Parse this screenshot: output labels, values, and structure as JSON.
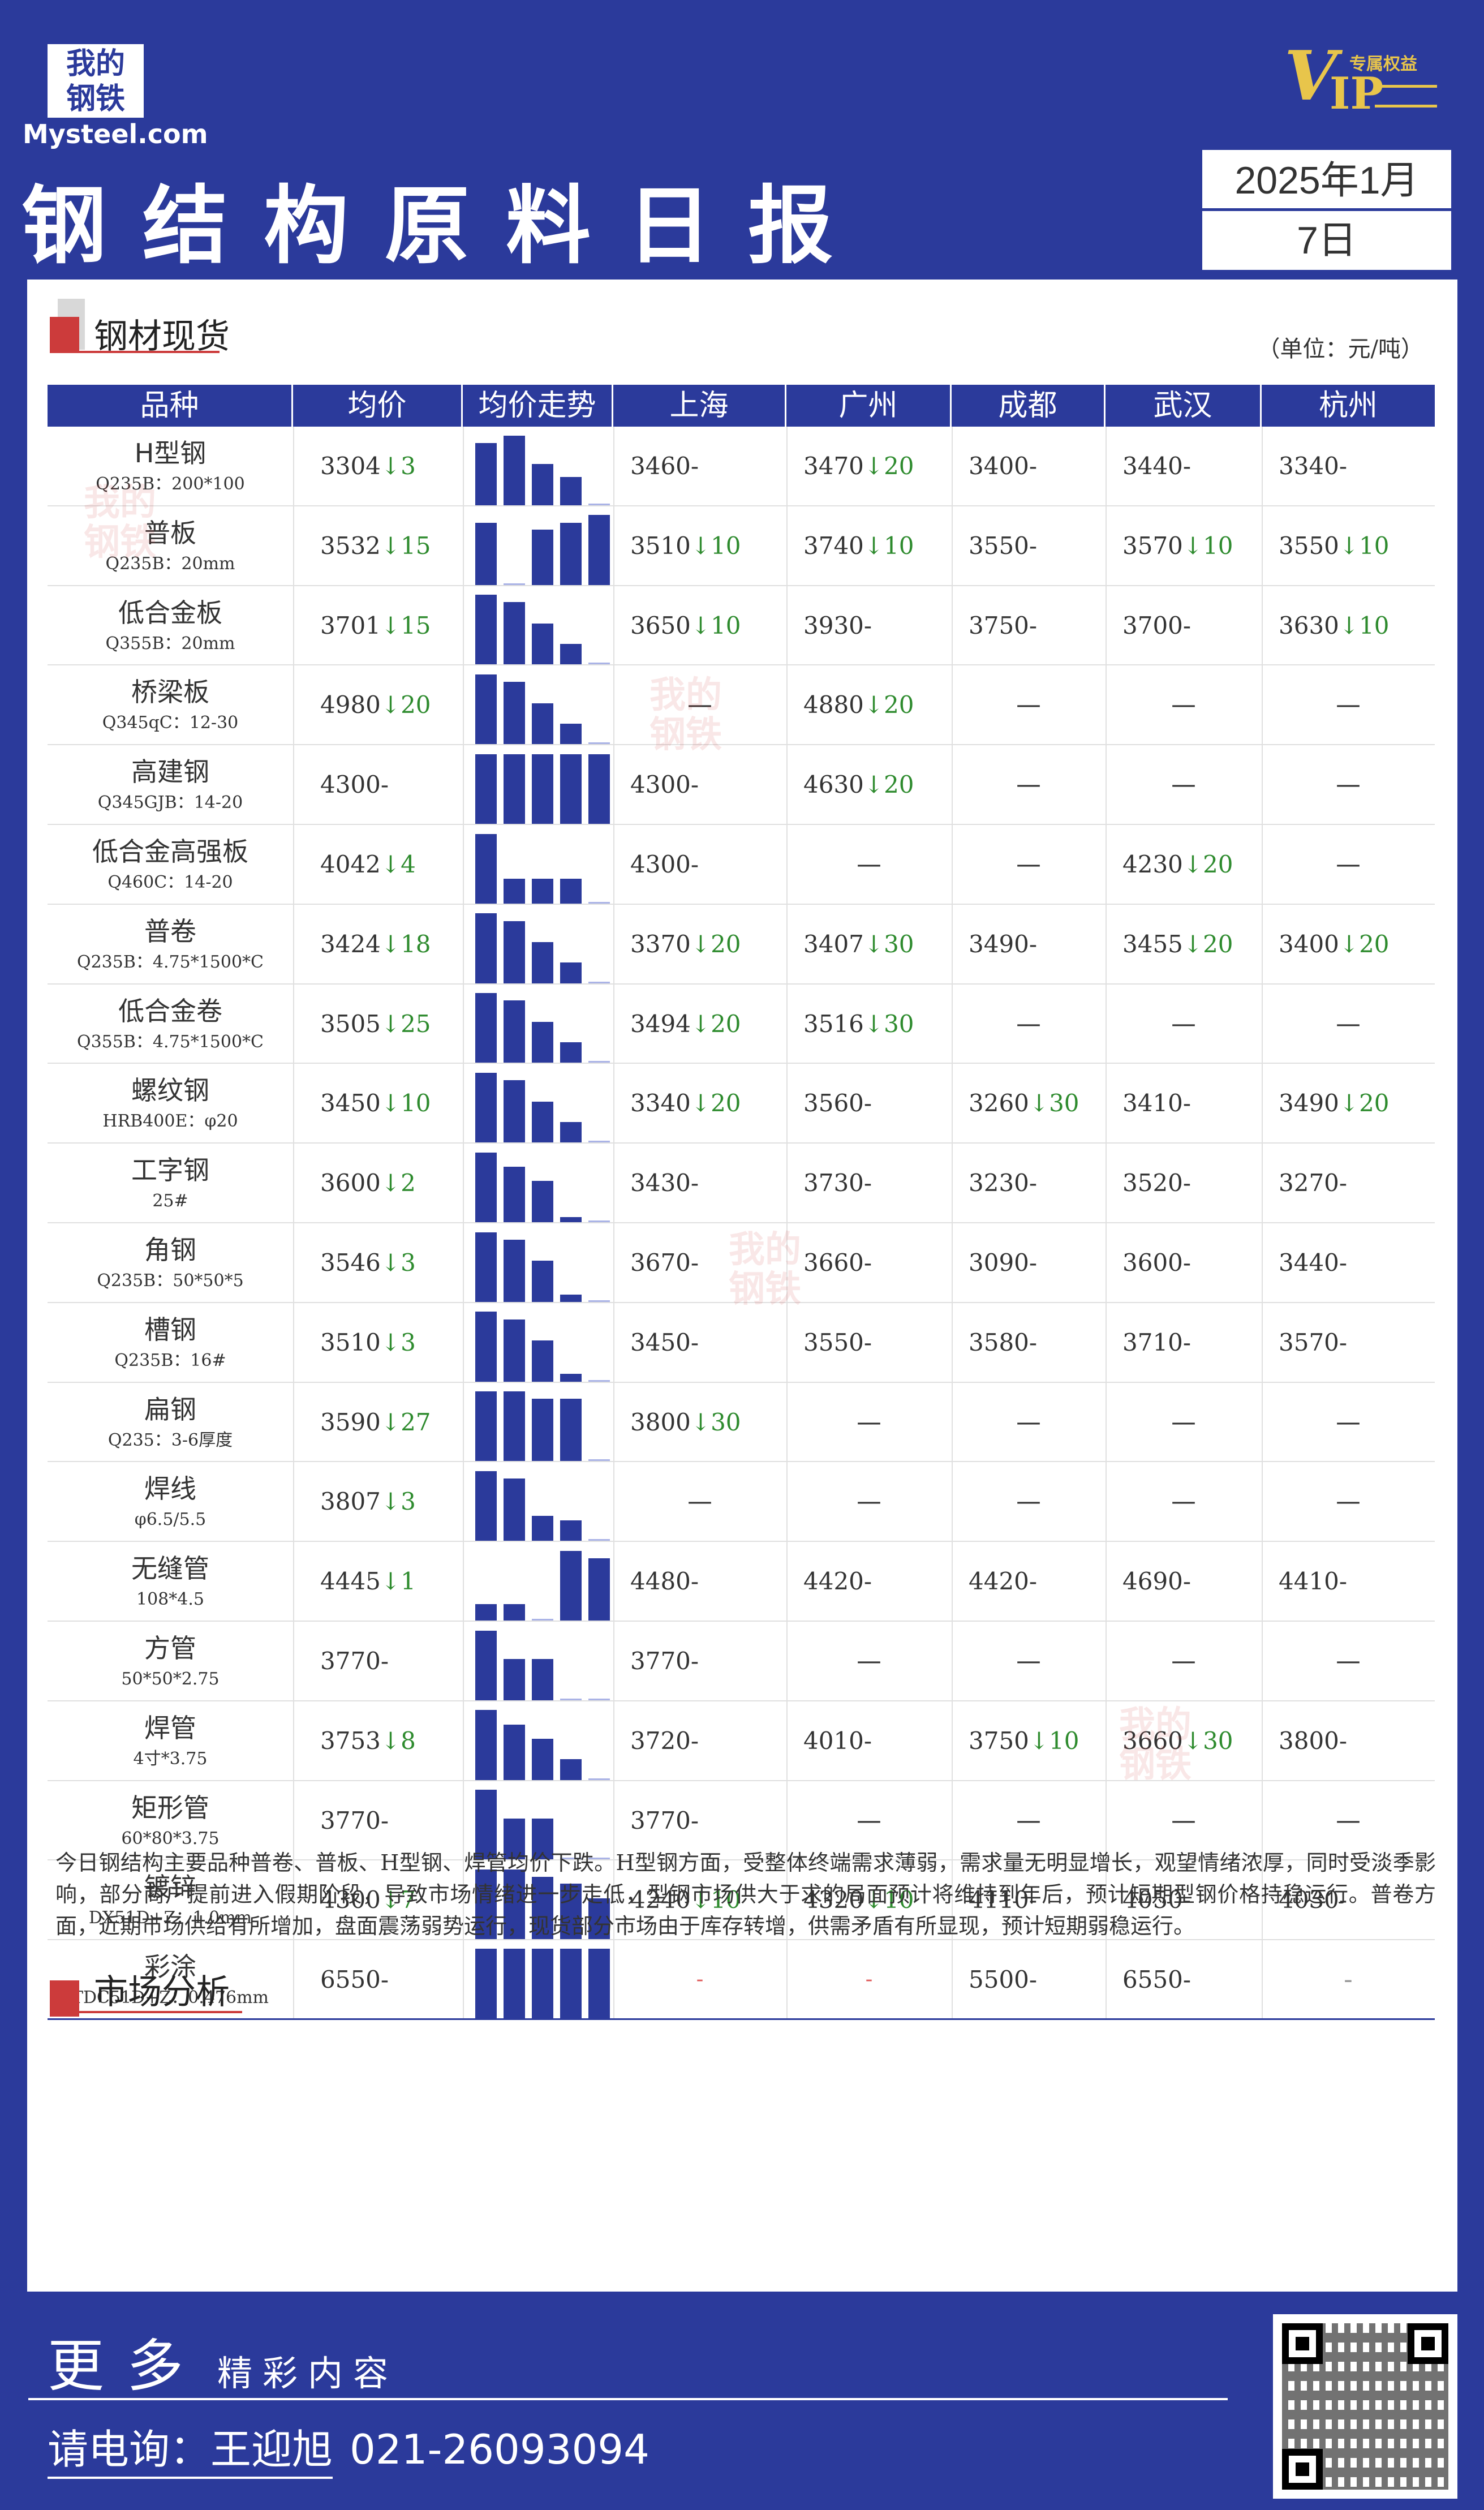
{
  "brand": {
    "logo_cn": "我的\n钢铁",
    "logo_en": "Mysteel.com",
    "vip_text": "VIP",
    "vip_tag": "专属权益"
  },
  "title": "钢结构原料日报",
  "date": {
    "line1": "2025年1月",
    "line2": "7日"
  },
  "section_spot": {
    "title": "钢材现货",
    "unit": "（单位：元/吨）"
  },
  "table": {
    "headers": [
      "品种",
      "均价",
      "均价走势",
      "上海",
      "广州",
      "成都",
      "武汉",
      "杭州"
    ],
    "rows": [
      {
        "name": "H型钢",
        "spec": "Q235B：200*100",
        "avg": "3304",
        "avg_chg": "↓3",
        "trend": [
          1.0,
          1.12,
          0.66,
          0.45,
          0.03
        ],
        "cities": [
          [
            "3460",
            "-"
          ],
          [
            "3470",
            "↓20"
          ],
          [
            "3400",
            "-"
          ],
          [
            "3440",
            "-"
          ],
          [
            "3340",
            "-"
          ]
        ]
      },
      {
        "name": "普板",
        "spec": "Q235B：20mm",
        "avg": "3532",
        "avg_chg": "↓15",
        "trend": [
          1.0,
          0.0,
          0.89,
          1.0,
          1.12
        ],
        "cities": [
          [
            "3510",
            "↓10"
          ],
          [
            "3740",
            "↓10"
          ],
          [
            "3550",
            "-"
          ],
          [
            "3570",
            "↓10"
          ],
          [
            "3550",
            "↓10"
          ]
        ]
      },
      {
        "name": "低合金板",
        "spec": "Q355B：20mm",
        "avg": "3701",
        "avg_chg": "↓15",
        "trend": [
          1.12,
          1.0,
          0.66,
          0.33,
          0.03
        ],
        "cities": [
          [
            "3650",
            "↓10"
          ],
          [
            "3930",
            "-"
          ],
          [
            "3750",
            "-"
          ],
          [
            "3700",
            "-"
          ],
          [
            "3630",
            "↓10"
          ]
        ]
      },
      {
        "name": "桥梁板",
        "spec": "Q345qC：12-30",
        "avg": "4980",
        "avg_chg": "↓20",
        "trend": [
          1.12,
          1.0,
          0.66,
          0.33,
          0.03
        ],
        "cities": [
          [
            "—",
            ""
          ],
          [
            "4880",
            "↓20"
          ],
          [
            "—",
            ""
          ],
          [
            "—",
            ""
          ],
          [
            "—",
            ""
          ]
        ]
      },
      {
        "name": "高建钢",
        "spec": "Q345GJB：14-20",
        "avg": "4300",
        "avg_chg": "-",
        "trend": [
          1.12,
          1.12,
          1.12,
          1.12,
          1.12
        ],
        "cities": [
          [
            "4300",
            "-"
          ],
          [
            "4630",
            "↓20"
          ],
          [
            "—",
            ""
          ],
          [
            "—",
            ""
          ],
          [
            "—",
            ""
          ]
        ]
      },
      {
        "name": "低合金高强板",
        "spec": "Q460C：14-20",
        "avg": "4042",
        "avg_chg": "↓4",
        "trend": [
          1.12,
          0.4,
          0.4,
          0.4,
          0.03
        ],
        "cities": [
          [
            "4300",
            "-"
          ],
          [
            "—",
            ""
          ],
          [
            "—",
            ""
          ],
          [
            "4230",
            "↓20"
          ],
          [
            "—",
            ""
          ]
        ]
      },
      {
        "name": "普卷",
        "spec": "Q235B：4.75*1500*C",
        "avg": "3424",
        "avg_chg": "↓18",
        "trend": [
          1.12,
          1.0,
          0.66,
          0.33,
          0.03
        ],
        "cities": [
          [
            "3370",
            "↓20"
          ],
          [
            "3407",
            "↓30"
          ],
          [
            "3490",
            "-"
          ],
          [
            "3455",
            "↓20"
          ],
          [
            "3400",
            "↓20"
          ]
        ]
      },
      {
        "name": "低合金卷",
        "spec": "Q355B：4.75*1500*C",
        "avg": "3505",
        "avg_chg": "↓25",
        "trend": [
          1.12,
          1.0,
          0.66,
          0.33,
          0.03
        ],
        "cities": [
          [
            "3494",
            "↓20"
          ],
          [
            "3516",
            "↓30"
          ],
          [
            "—",
            ""
          ],
          [
            "—",
            ""
          ],
          [
            "—",
            ""
          ]
        ]
      },
      {
        "name": "螺纹钢",
        "spec": "HRB400E：φ20",
        "avg": "3450",
        "avg_chg": "↓10",
        "trend": [
          1.12,
          1.0,
          0.66,
          0.33,
          0.03
        ],
        "cities": [
          [
            "3340",
            "↓20"
          ],
          [
            "3560",
            "-"
          ],
          [
            "3260",
            "↓30"
          ],
          [
            "3410",
            "-"
          ],
          [
            "3490",
            "↓20"
          ]
        ]
      },
      {
        "name": "工字钢",
        "spec": "25#",
        "avg": "3600",
        "avg_chg": "↓2",
        "trend": [
          1.12,
          0.89,
          0.66,
          0.08,
          0.03
        ],
        "cities": [
          [
            "3430",
            "-"
          ],
          [
            "3730",
            "-"
          ],
          [
            "3230",
            "-"
          ],
          [
            "3520",
            "-"
          ],
          [
            "3270",
            "-"
          ]
        ]
      },
      {
        "name": "角钢",
        "spec": "Q235B：50*50*5",
        "avg": "3546",
        "avg_chg": "↓3",
        "trend": [
          1.12,
          1.0,
          0.66,
          0.12,
          0.03
        ],
        "cities": [
          [
            "3670",
            "-"
          ],
          [
            "3660",
            "-"
          ],
          [
            "3090",
            "-"
          ],
          [
            "3600",
            "-"
          ],
          [
            "3440",
            "-"
          ]
        ]
      },
      {
        "name": "槽钢",
        "spec": "Q235B：16#",
        "avg": "3510",
        "avg_chg": "↓3",
        "trend": [
          1.12,
          1.0,
          0.66,
          0.12,
          0.03
        ],
        "cities": [
          [
            "3450",
            "-"
          ],
          [
            "3550",
            "-"
          ],
          [
            "3580",
            "-"
          ],
          [
            "3710",
            "-"
          ],
          [
            "3570",
            "-"
          ]
        ]
      },
      {
        "name": "扁钢",
        "spec": "Q235：3-6厚度",
        "avg": "3590",
        "avg_chg": "↓27",
        "trend": [
          1.12,
          1.12,
          1.0,
          1.0,
          0.03
        ],
        "cities": [
          [
            "3800",
            "↓30"
          ],
          [
            "—",
            ""
          ],
          [
            "—",
            ""
          ],
          [
            "—",
            ""
          ],
          [
            "—",
            ""
          ]
        ]
      },
      {
        "name": "焊线",
        "spec": "φ6.5/5.5",
        "avg": "3807",
        "avg_chg": "↓3",
        "trend": [
          1.12,
          1.0,
          0.4,
          0.33,
          0.03
        ],
        "cities": [
          [
            "—",
            ""
          ],
          [
            "—",
            ""
          ],
          [
            "—",
            ""
          ],
          [
            "—",
            ""
          ],
          [
            "—",
            ""
          ]
        ]
      },
      {
        "name": "无缝管",
        "spec": "108*4.5",
        "avg": "4445",
        "avg_chg": "↓1",
        "trend": [
          0.26,
          0.26,
          0.03,
          1.12,
          1.0
        ],
        "cities": [
          [
            "4480",
            "-"
          ],
          [
            "4420",
            "-"
          ],
          [
            "4420",
            "-"
          ],
          [
            "4690",
            "-"
          ],
          [
            "4410",
            "-"
          ]
        ]
      },
      {
        "name": "方管",
        "spec": "50*50*2.75",
        "avg": "3770",
        "avg_chg": "-",
        "trend": [
          1.12,
          0.66,
          0.66,
          0.03,
          0.03
        ],
        "cities": [
          [
            "3770",
            "-"
          ],
          [
            "—",
            ""
          ],
          [
            "—",
            ""
          ],
          [
            "—",
            ""
          ],
          [
            "—",
            ""
          ]
        ]
      },
      {
        "name": "焊管",
        "spec": "4寸*3.75",
        "avg": "3753",
        "avg_chg": "↓8",
        "trend": [
          1.12,
          0.89,
          0.66,
          0.33,
          0.03
        ],
        "cities": [
          [
            "3720",
            "-"
          ],
          [
            "4010",
            "-"
          ],
          [
            "3750",
            "↓10"
          ],
          [
            "3660",
            "↓30"
          ],
          [
            "3800",
            "-"
          ]
        ]
      },
      {
        "name": "矩形管",
        "spec": "60*80*3.75",
        "avg": "3770",
        "avg_chg": "-",
        "trend": [
          1.12,
          0.66,
          0.66,
          0.03,
          0.03
        ],
        "cities": [
          [
            "3770",
            "-"
          ],
          [
            "—",
            ""
          ],
          [
            "—",
            ""
          ],
          [
            "—",
            ""
          ],
          [
            "—",
            ""
          ]
        ]
      },
      {
        "name": "镀锌",
        "spec": "DX51D+Z：1.0mm",
        "avg": "4300",
        "avg_chg": "↓7",
        "trend": [
          1.12,
          1.12,
          1.0,
          0.89,
          0.66
        ],
        "cities": [
          [
            "4240",
            "↓10"
          ],
          [
            "4320",
            "↓10"
          ],
          [
            "4110",
            "-"
          ],
          [
            "4050",
            "-"
          ],
          [
            "4030",
            "-"
          ]
        ]
      },
      {
        "name": "彩涂",
        "spec": "TDC51D+Z：0.476mm",
        "avg": "6550",
        "avg_chg": "-",
        "trend": [
          1.12,
          1.12,
          1.12,
          1.12,
          1.12
        ],
        "cities": [
          [
            "-",
            "red"
          ],
          [
            "-",
            "red"
          ],
          [
            "5500",
            "-"
          ],
          [
            "6550",
            "-"
          ],
          [
            "-",
            "grey"
          ]
        ]
      }
    ]
  },
  "section_market": {
    "title": "市场分析"
  },
  "analysis": "今日钢结构主要品种普卷、普板、H型钢、焊管均价下跌。H型钢方面，受整体终端需求薄弱，需求量无明显增长，观望情绪浓厚，同时受淡季影响，部分商户提前进入假期阶段，导致市场情绪进一步走低，型钢市场供大于求的局面预计将维持到年后，预计短期型钢价格持稳运行。普卷方面，近期市场供给有所增加，盘面震荡弱势运行，现货部分市场由于库存转增，供需矛盾有所显现，预计短期弱稳运行。",
  "footer": {
    "more_big": "更多",
    "more_small": "精彩内容",
    "contact_label": "请电询：",
    "contact_name": "王迎旭",
    "contact_phone": "021-26093094"
  },
  "colors": {
    "brand_blue": "#2b3a9b",
    "accent_red": "#cc3b3b",
    "down_green": "#2e8b2e",
    "vip_gold": "#e8c54b"
  }
}
